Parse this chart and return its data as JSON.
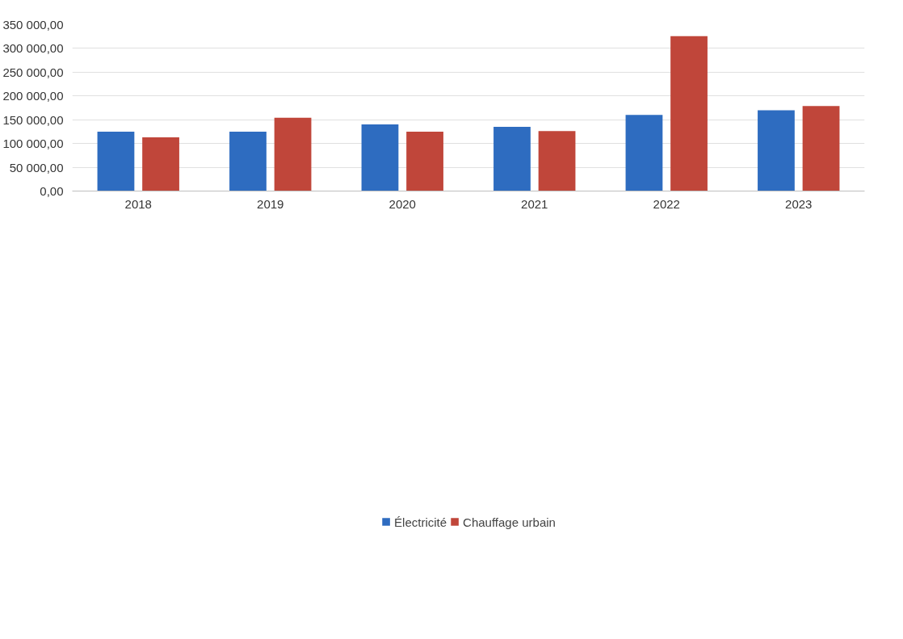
{
  "chart_data": {
    "type": "bar",
    "categories": [
      "2018",
      "2019",
      "2020",
      "2021",
      "2022",
      "2023"
    ],
    "series": [
      {
        "name": "Électricité",
        "color": "#2e6cc0",
        "values": [
          125000,
          125000,
          140000,
          135000,
          160000,
          170000
        ]
      },
      {
        "name": "Chauffage urbain",
        "color": "#c0463a",
        "values": [
          113000,
          154000,
          125000,
          126000,
          326000,
          179000
        ]
      }
    ],
    "ylim": [
      0,
      350000
    ],
    "yticks": [
      {
        "value": 0,
        "label": "0,00"
      },
      {
        "value": 50000,
        "label": "50 000,00"
      },
      {
        "value": 100000,
        "label": "100 000,00"
      },
      {
        "value": 150000,
        "label": "150 000,00"
      },
      {
        "value": 200000,
        "label": "200 000,00"
      },
      {
        "value": 250000,
        "label": "250 000,00"
      },
      {
        "value": 300000,
        "label": "300 000,00"
      },
      {
        "value": 350000,
        "label": "350 000,00"
      }
    ],
    "grid": "y",
    "legend": "bottom"
  }
}
